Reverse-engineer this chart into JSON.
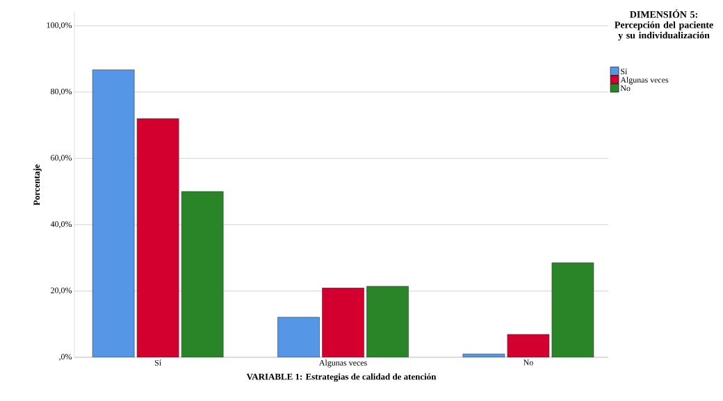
{
  "chart_data": {
    "type": "bar",
    "xlabel": "VARIABLE 1: Estrategias de calidad de atención",
    "ylabel": "Porcentaje",
    "legend_title": "DIMENSIÓN 5: Percepción del paciente y su individualización",
    "categories": [
      "Sí",
      "Algunas veces",
      "No"
    ],
    "series": [
      {
        "name": "Sí",
        "color": "#5596e6",
        "values": [
          86.7,
          12.1,
          1.0
        ]
      },
      {
        "name": "Algunas veces",
        "color": "#d3002f",
        "values": [
          72.0,
          20.9,
          6.9
        ]
      },
      {
        "name": "No",
        "color": "#2a8428",
        "values": [
          50.0,
          21.4,
          28.5
        ]
      }
    ],
    "ylim": [
      0,
      104
    ],
    "yticks": [
      {
        "value": 0,
        "label": ",0%"
      },
      {
        "value": 20,
        "label": "20,0%"
      },
      {
        "value": 40,
        "label": "40,0%"
      },
      {
        "value": 60,
        "label": "60,0%"
      },
      {
        "value": 80,
        "label": "80,0%"
      },
      {
        "value": 100,
        "label": "100,0%"
      }
    ],
    "grid": "y",
    "legend": "top right"
  }
}
